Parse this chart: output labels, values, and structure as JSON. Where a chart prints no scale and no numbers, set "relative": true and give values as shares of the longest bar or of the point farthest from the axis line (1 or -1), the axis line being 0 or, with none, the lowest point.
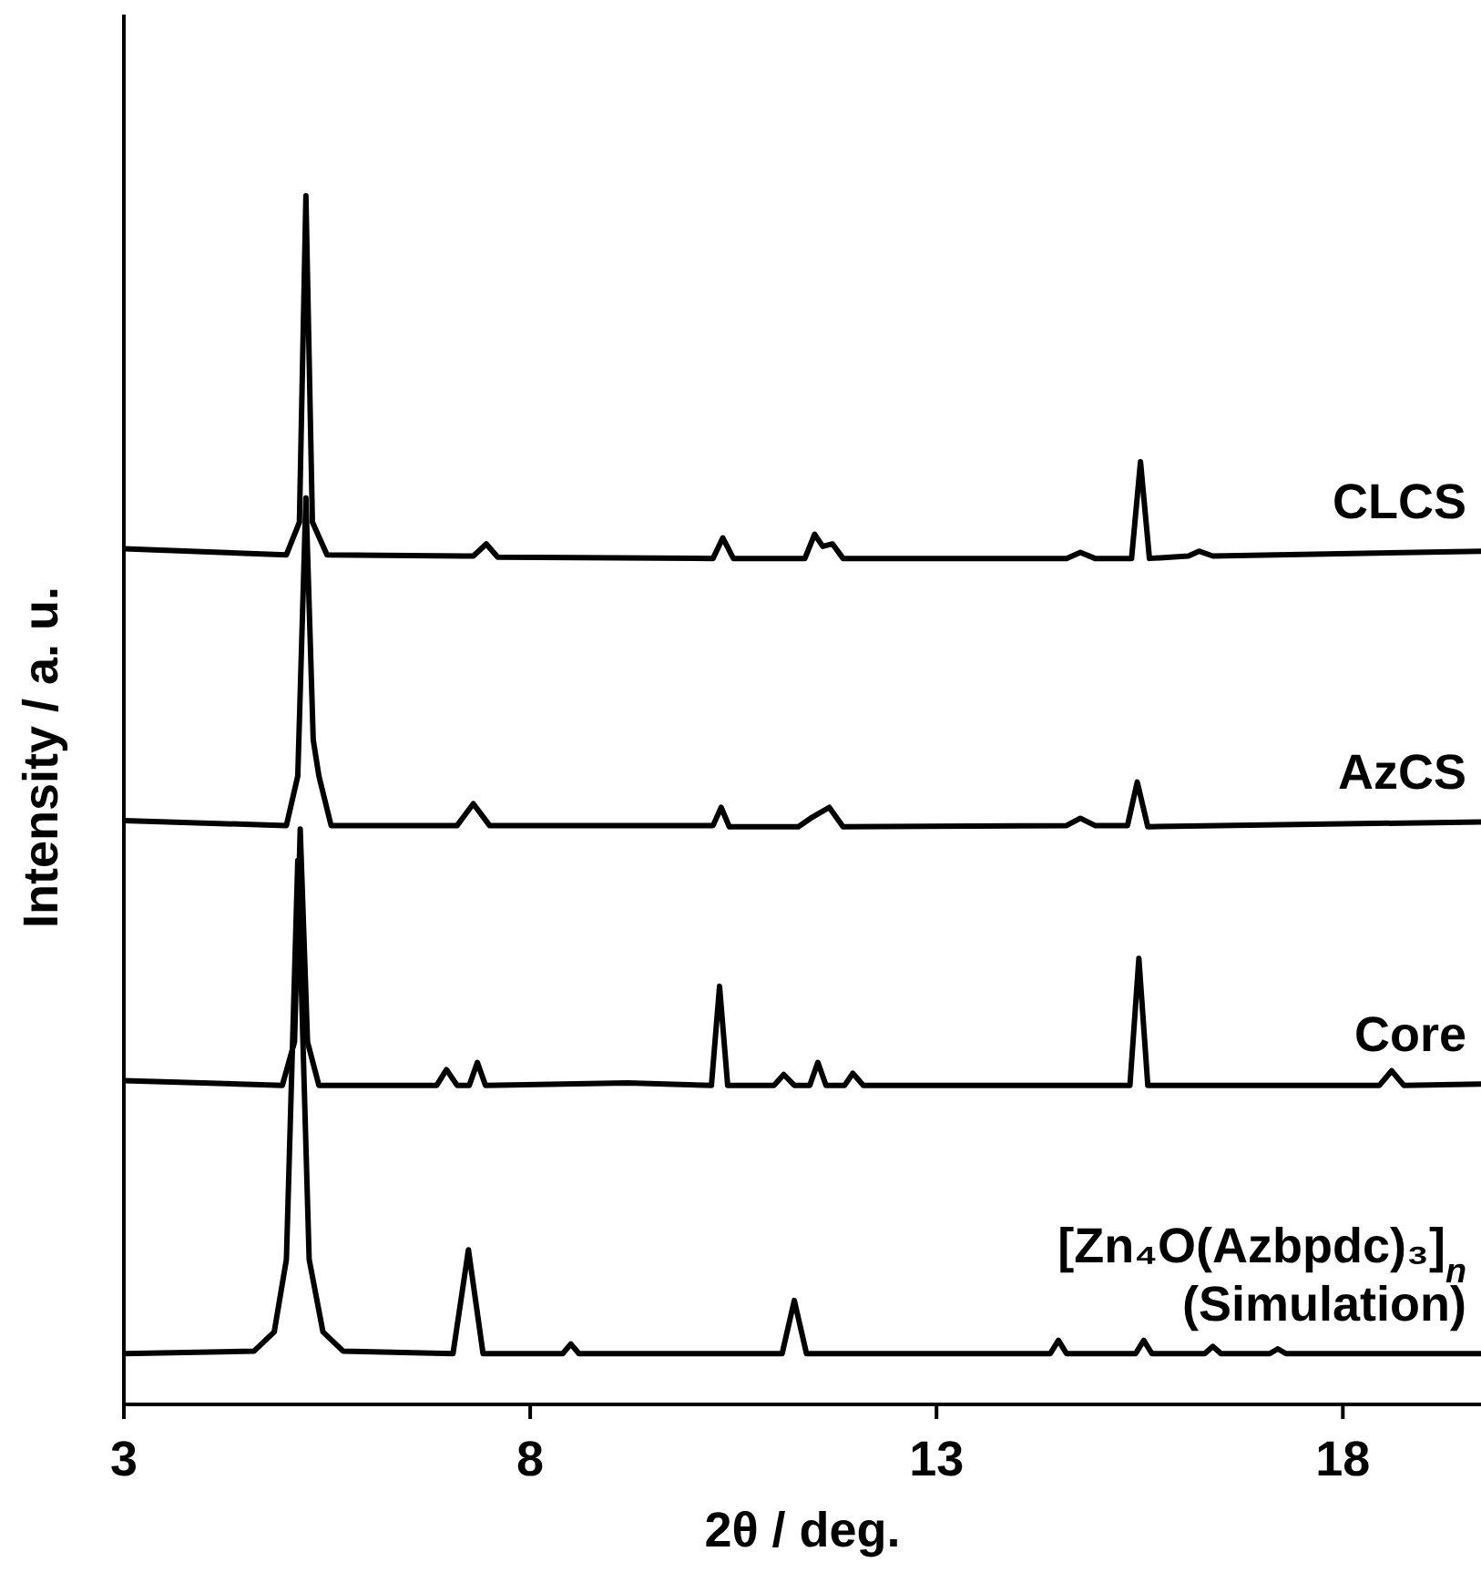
{
  "chart_data": {
    "type": "line",
    "xlabel": "2θ / deg.",
    "ylabel": "Intensity / a. u.",
    "relative": true,
    "xlim": [
      3,
      19.7
    ],
    "xticks": [
      3,
      8,
      13,
      18
    ],
    "grid": false,
    "legend": false,
    "marker": "none",
    "line_style": "solid",
    "series": [
      {
        "name": "CLCS",
        "color": "#000000",
        "x": [
          3,
          5.0,
          5.16,
          5.24,
          5.32,
          5.5,
          7.3,
          7.46,
          7.6,
          10.25,
          10.37,
          10.5,
          11.38,
          11.5,
          11.6,
          11.72,
          11.85,
          14.6,
          14.77,
          14.95,
          15.4,
          15.51,
          15.62,
          16.1,
          16.23,
          16.4,
          19.7
        ],
        "values": [
          0.708,
          0.703,
          0.73,
          1.0,
          0.73,
          0.703,
          0.702,
          0.712,
          0.701,
          0.7,
          0.717,
          0.7,
          0.7,
          0.72,
          0.71,
          0.712,
          0.7,
          0.7,
          0.705,
          0.7,
          0.7,
          0.78,
          0.7,
          0.702,
          0.706,
          0.702,
          0.706
        ]
      },
      {
        "name": "AzCS",
        "color": "#000000",
        "x": [
          3,
          5.0,
          5.14,
          5.24,
          5.33,
          5.4,
          5.55,
          7.1,
          7.3,
          7.5,
          10.25,
          10.35,
          10.45,
          11.3,
          11.45,
          11.68,
          11.85,
          14.6,
          14.77,
          14.95,
          15.35,
          15.47,
          15.6,
          19.7
        ],
        "values": [
          0.483,
          0.479,
          0.52,
          0.75,
          0.55,
          0.52,
          0.479,
          0.479,
          0.497,
          0.479,
          0.479,
          0.494,
          0.478,
          0.478,
          0.485,
          0.494,
          0.478,
          0.479,
          0.485,
          0.479,
          0.479,
          0.515,
          0.478,
          0.482
        ]
      },
      {
        "name": "Core",
        "color": "#000000",
        "x": [
          3,
          4.95,
          5.1,
          5.17,
          5.26,
          5.4,
          6.85,
          6.97,
          7.1,
          7.25,
          7.35,
          7.45,
          9.2,
          10.23,
          10.33,
          10.43,
          11.0,
          11.12,
          11.25,
          11.44,
          11.54,
          11.64,
          11.87,
          11.97,
          12.1,
          15.38,
          15.49,
          15.6,
          18.45,
          18.6,
          18.75,
          19.7
        ],
        "values": [
          0.268,
          0.264,
          0.3,
          0.476,
          0.3,
          0.264,
          0.264,
          0.277,
          0.264,
          0.264,
          0.283,
          0.264,
          0.266,
          0.264,
          0.346,
          0.264,
          0.264,
          0.273,
          0.264,
          0.264,
          0.283,
          0.264,
          0.264,
          0.274,
          0.264,
          0.264,
          0.369,
          0.264,
          0.264,
          0.276,
          0.264,
          0.265
        ]
      },
      {
        "name": "[Zn₄O(Azbpdc)₃]$_{n}$\n(Simulation)",
        "color": "#000000",
        "x": [
          3,
          4.6,
          4.85,
          5.0,
          5.14,
          5.28,
          5.45,
          5.7,
          7.05,
          7.24,
          7.42,
          8.4,
          8.5,
          8.6,
          11.1,
          11.25,
          11.4,
          14.4,
          14.5,
          14.6,
          15.45,
          15.55,
          15.65,
          16.3,
          16.4,
          16.5,
          17.1,
          17.2,
          17.3,
          19.7
        ],
        "values": [
          0.042,
          0.044,
          0.06,
          0.12,
          0.45,
          0.12,
          0.06,
          0.044,
          0.042,
          0.128,
          0.042,
          0.042,
          0.05,
          0.042,
          0.042,
          0.086,
          0.042,
          0.042,
          0.053,
          0.042,
          0.042,
          0.053,
          0.042,
          0.042,
          0.048,
          0.042,
          0.042,
          0.046,
          0.042,
          0.042
        ]
      }
    ]
  }
}
